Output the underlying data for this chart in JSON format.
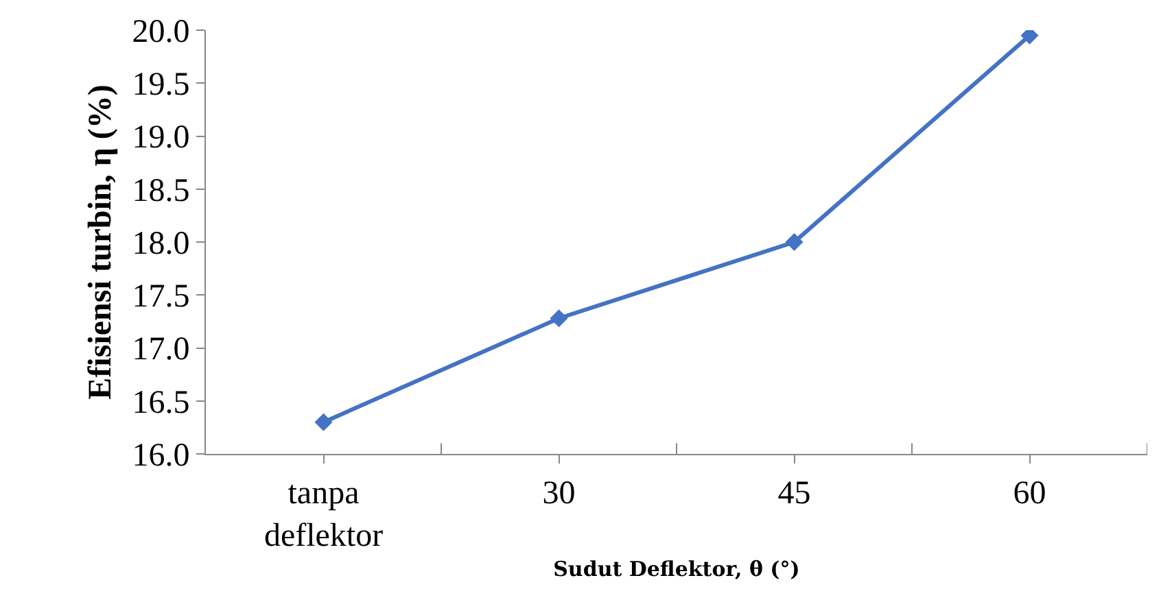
{
  "chart_data": {
    "type": "line",
    "xlabel": "Sudut Deflektor, θ (°)",
    "ylabel": "Efisiensi turbin, η (%)",
    "categories": [
      "tanpa deflektor",
      "30",
      "45",
      "60"
    ],
    "series": [
      {
        "color": "#4472c4",
        "values": [
          16.3,
          17.28,
          18.0,
          19.95
        ]
      }
    ],
    "ylim": [
      16.0,
      20.0
    ],
    "yticks": [
      {
        "value": 16,
        "label": "16.0"
      },
      {
        "value": 16.5,
        "label": "16.5"
      },
      {
        "value": 17,
        "label": "17.0"
      },
      {
        "value": 17.5,
        "label": "17.5"
      },
      {
        "value": 18,
        "label": "18.0"
      },
      {
        "value": 18.5,
        "label": "18.5"
      },
      {
        "value": 19,
        "label": "19.0"
      },
      {
        "value": 19.5,
        "label": "19.5"
      },
      {
        "value": 20,
        "label": "20.0"
      }
    ],
    "grid": false,
    "legend": false,
    "marker": "diamond",
    "line_style": "solid"
  }
}
